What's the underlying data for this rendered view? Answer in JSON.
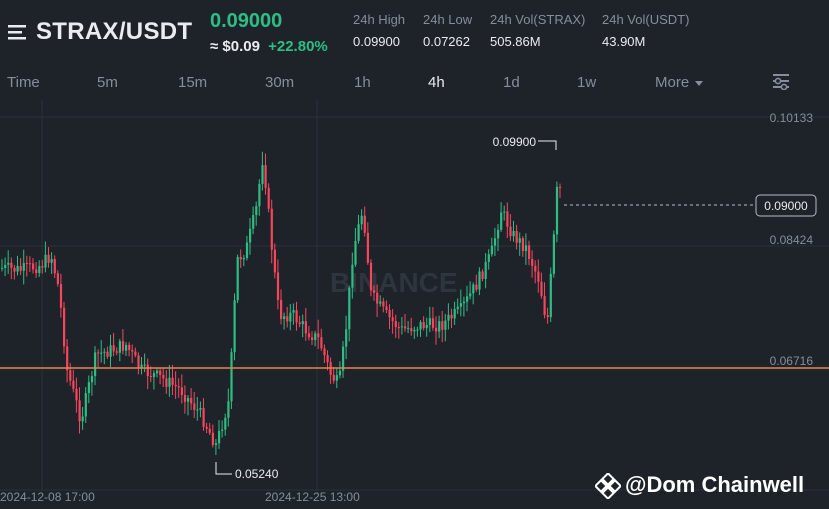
{
  "header": {
    "pair": "STRAX/USDT",
    "last_price": "0.09000",
    "usd_price": "≈ $0.09",
    "change": "+22.80%",
    "stats": [
      {
        "label": "24h High",
        "value": "0.09900"
      },
      {
        "label": "24h Low",
        "value": "0.07262"
      },
      {
        "label": "24h Vol(STRAX)",
        "value": "505.86M"
      },
      {
        "label": "24h Vol(USDT)",
        "value": "43.90M"
      }
    ]
  },
  "tabs": [
    "Time",
    "5m",
    "15m",
    "30m",
    "1h",
    "4h",
    "1d",
    "1w",
    "More"
  ],
  "active_tab": "4h",
  "chart": {
    "price_labels": [
      "0.10133",
      "0.08424",
      "0.06716"
    ],
    "current_price_label": "0.09000",
    "high_marker": "0.09900",
    "low_marker": "0.05240",
    "time_labels": [
      "2024-12-08 17:00",
      "2024-12-25 13:00"
    ],
    "watermark_bg": "BINANCE",
    "colors": {
      "up": "#2ebd85",
      "down": "#f6465d",
      "hline": "#e8834a",
      "grid": "#2b3139"
    }
  },
  "watermark": "@Dom Chainwell"
}
